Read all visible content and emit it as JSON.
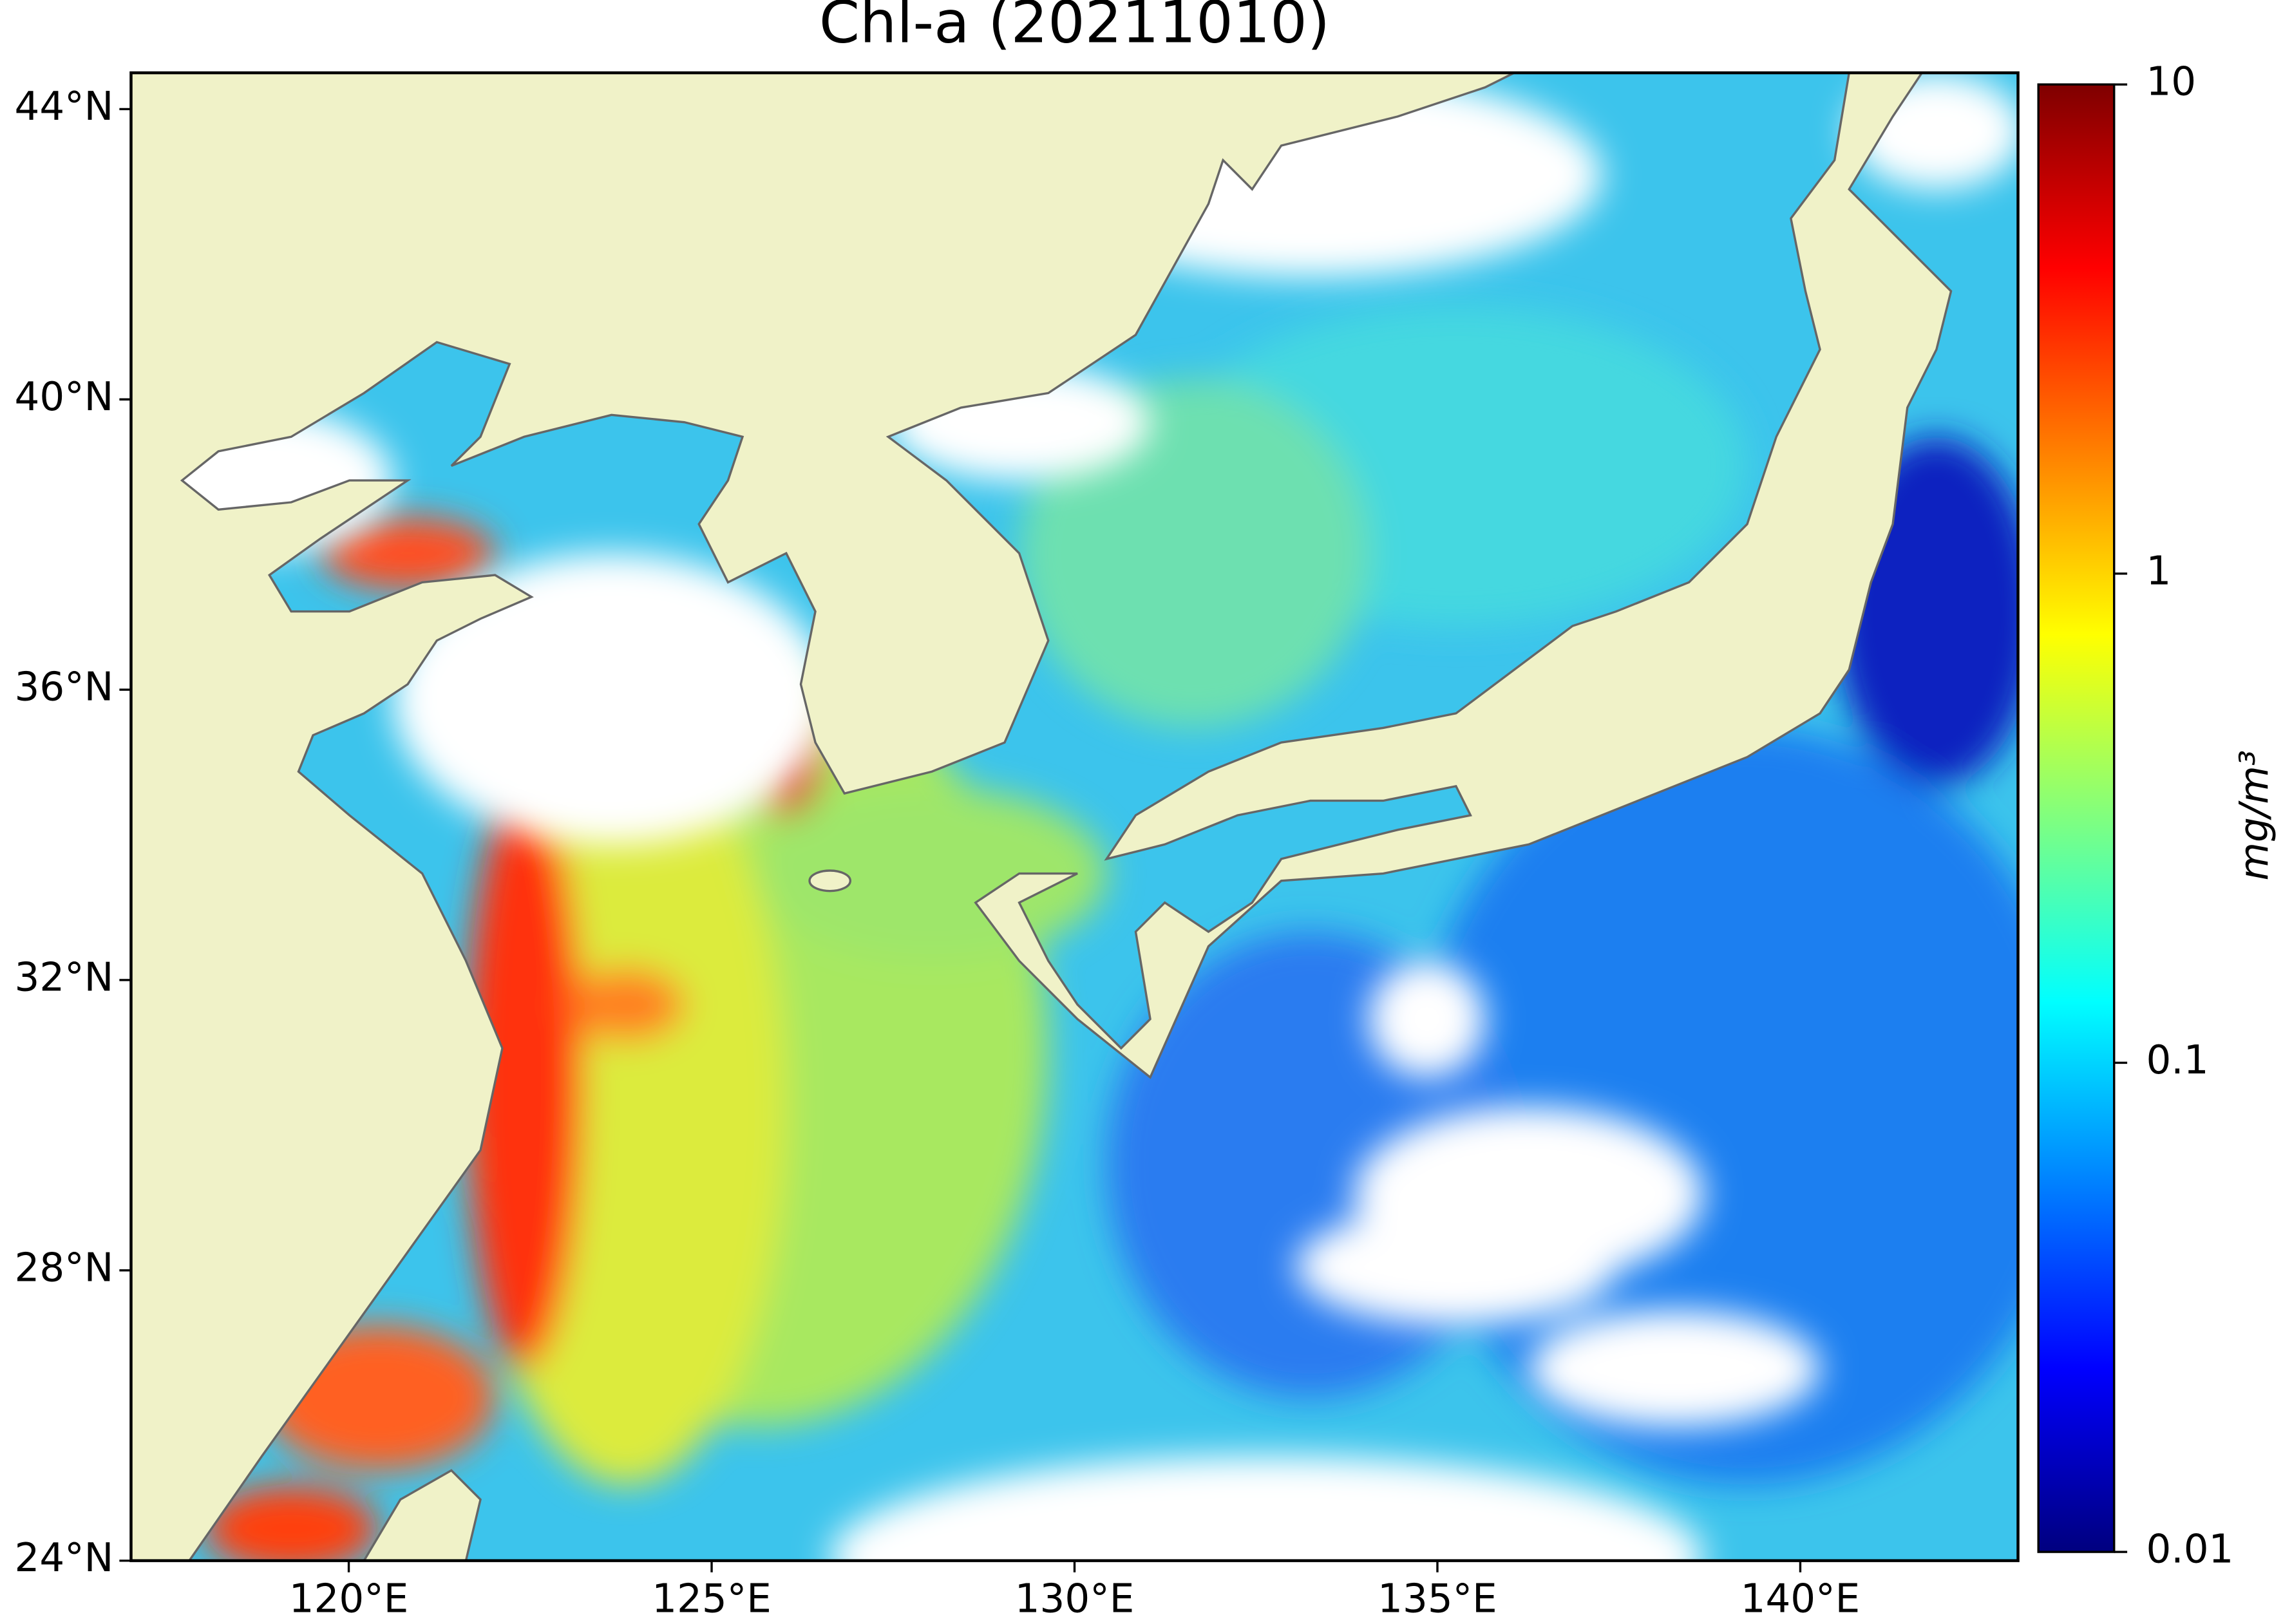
{
  "chart_data": {
    "type": "map",
    "title": "Chl-a (20211010)",
    "xlim": [
      117,
      143
    ],
    "ylim": [
      24,
      44.5
    ],
    "xticks": [
      {
        "value": 120,
        "label": "120°E"
      },
      {
        "value": 125,
        "label": "125°E"
      },
      {
        "value": 130,
        "label": "130°E"
      },
      {
        "value": 135,
        "label": "135°E"
      },
      {
        "value": 140,
        "label": "140°E"
      }
    ],
    "yticks": [
      {
        "value": 24,
        "label": "24°N"
      },
      {
        "value": 28,
        "label": "28°N"
      },
      {
        "value": 32,
        "label": "32°N"
      },
      {
        "value": 36,
        "label": "36°N"
      },
      {
        "value": 40,
        "label": "40°N"
      },
      {
        "value": 44,
        "label": "44°N"
      }
    ],
    "colorbar": {
      "label": "mg/m³",
      "clim": [
        0.01,
        10
      ],
      "ticks": [
        0.01,
        0.1,
        1,
        10
      ],
      "log": true
    }
  }
}
